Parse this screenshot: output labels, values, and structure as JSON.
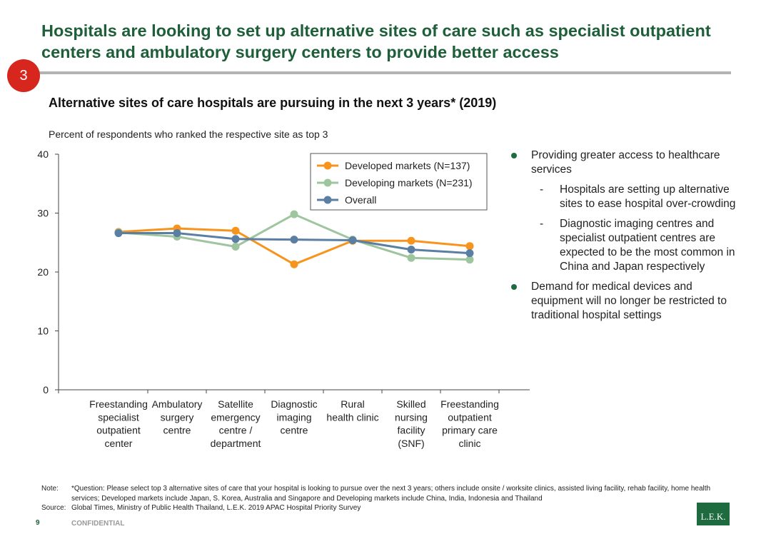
{
  "headline": "Hospitals are looking to set up alternative sites of care such as specialist outpatient centers and ambulatory surgery centers to provide better access",
  "badge": "3",
  "chart_data": {
    "type": "line",
    "title": "Alternative sites of care hospitals are pursuing in the next 3 years* (2019)",
    "subtitle": "Percent of respondents who ranked the respective site as top 3",
    "categories": [
      [
        "Freestanding",
        "specialist",
        "outpatient",
        "center"
      ],
      [
        "Ambulatory",
        "surgery",
        "centre"
      ],
      [
        "Satellite",
        "emergency",
        "centre /",
        "department"
      ],
      [
        "Diagnostic",
        "imaging",
        "centre"
      ],
      [
        "Rural",
        "health clinic"
      ],
      [
        "Skilled",
        "nursing",
        "facility",
        "(SNF)"
      ],
      [
        "Freestanding",
        "outpatient",
        "primary care",
        "clinic"
      ]
    ],
    "ylim": [
      0,
      40
    ],
    "yticks": [
      0,
      10,
      20,
      30,
      40
    ],
    "legend_position": "top-right",
    "series": [
      {
        "name": "Developed markets (N=137)",
        "color": "#f7941d",
        "values": [
          26.8,
          27.4,
          27.0,
          21.3,
          25.3,
          25.3,
          24.4
        ]
      },
      {
        "name": "Developing markets (N=231)",
        "color": "#9fc59e",
        "values": [
          26.7,
          26.0,
          24.3,
          29.8,
          25.5,
          22.4,
          22.1
        ]
      },
      {
        "name": "Overall",
        "color": "#5a7fa3",
        "values": [
          26.6,
          26.6,
          25.6,
          25.5,
          25.4,
          23.8,
          23.2
        ]
      }
    ]
  },
  "bullets": [
    {
      "text": "Providing greater access to healthcare services",
      "subs": [
        "Hospitals are setting up alternative sites to ease hospital over-crowding",
        "Diagnostic imaging centres and specialist outpatient centres are expected to be the most common in China and Japan respectively"
      ]
    },
    {
      "text": "Demand for medical devices and equipment will no longer be restricted to traditional hospital settings",
      "subs": []
    }
  ],
  "sub_dash": "-",
  "footnote": {
    "note_label": "Note:",
    "note_text": "*Question: Please select top 3 alternative sites of care that your hospital is looking to pursue over the next 3 years; others include onsite / worksite clinics, assisted living facility, rehab facility, home health services; Developed markets include Japan, S. Korea, Australia and Singapore and Developing markets include China, India, Indonesia and Thailand",
    "source_label": "Source:",
    "source_text": "Global Times, Ministry of Public Health Thailand, L.E.K. 2019 APAC Hospital Priority Survey"
  },
  "page_number": "9",
  "confidential": "CONFIDENTIAL",
  "logo": "L.E.K."
}
